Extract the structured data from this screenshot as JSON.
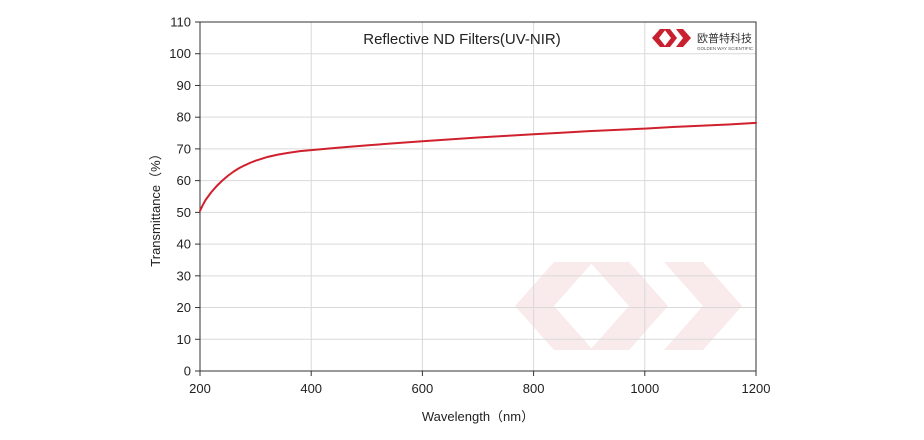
{
  "chart_data": {
    "type": "line",
    "title": "Reflective ND Filters(UV-NIR)",
    "xlabel": "Wavelength（nm）",
    "ylabel": "Transmittance（%）",
    "xlim": [
      200,
      1200
    ],
    "ylim": [
      0,
      110
    ],
    "xticks": [
      200,
      400,
      600,
      800,
      1000,
      1200
    ],
    "yticks": [
      0,
      10,
      20,
      30,
      40,
      50,
      60,
      70,
      80,
      90,
      100,
      110
    ],
    "grid": true,
    "series": [
      {
        "color": "#d0202e",
        "x": [
          200,
          205,
          210,
          220,
          230,
          240,
          250,
          260,
          270,
          280,
          290,
          300,
          320,
          340,
          360,
          380,
          400,
          450,
          500,
          550,
          600,
          650,
          700,
          750,
          800,
          850,
          900,
          950,
          1000,
          1050,
          1100,
          1150,
          1200
        ],
        "y": [
          50.5,
          52.3,
          53.9,
          56.3,
          58.3,
          60.0,
          61.5,
          62.8,
          63.9,
          64.8,
          65.6,
          66.3,
          67.4,
          68.2,
          68.8,
          69.3,
          69.6,
          70.4,
          71.1,
          71.8,
          72.4,
          73.0,
          73.6,
          74.1,
          74.6,
          75.1,
          75.6,
          76.0,
          76.4,
          76.9,
          77.3,
          77.7,
          78.2
        ]
      }
    ]
  },
  "logo": {
    "name_cn": "欧普特科技",
    "name_en": "GOLDEN WAY SCIENTIFIC",
    "color": "#c8202f"
  }
}
